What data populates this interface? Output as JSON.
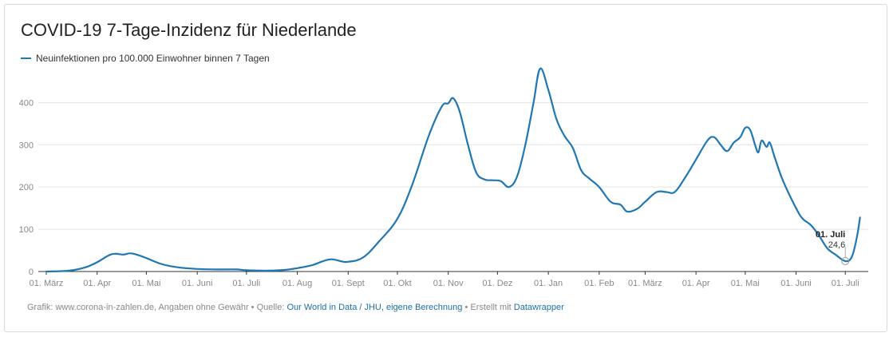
{
  "chart_data": {
    "type": "line",
    "title": "COVID-19 7-Tage-Inzidenz für Niederlande",
    "xlabel": "",
    "ylabel": "",
    "ylim": [
      0,
      480
    ],
    "grid": true,
    "legend_position": "top-left",
    "y_ticks": [
      "0",
      "100",
      "200",
      "300",
      "400"
    ],
    "x_ticks": [
      "01. März",
      "01. Apr",
      "01. Mai",
      "01. Juni",
      "01. Juli",
      "01. Aug",
      "01. Sept",
      "01. Okt",
      "01. Nov",
      "01. Dez",
      "01. Jan",
      "01. Feb",
      "01. März",
      "01. Apr",
      "01. Mai",
      "01. Juni",
      "01. Juli"
    ],
    "series": [
      {
        "name": "Neuinfektionen pro 100.000 Einwohner binnen 7 Tagen",
        "color": "#1f77b4",
        "points": [
          {
            "x": "2020-03-01",
            "y": 0
          },
          {
            "x": "2020-03-15",
            "y": 2
          },
          {
            "x": "2020-03-25",
            "y": 10
          },
          {
            "x": "2020-04-01",
            "y": 22
          },
          {
            "x": "2020-04-08",
            "y": 38
          },
          {
            "x": "2020-04-12",
            "y": 42
          },
          {
            "x": "2020-04-17",
            "y": 40
          },
          {
            "x": "2020-04-21",
            "y": 43
          },
          {
            "x": "2020-04-25",
            "y": 40
          },
          {
            "x": "2020-05-01",
            "y": 32
          },
          {
            "x": "2020-05-10",
            "y": 18
          },
          {
            "x": "2020-05-20",
            "y": 10
          },
          {
            "x": "2020-06-01",
            "y": 6
          },
          {
            "x": "2020-06-15",
            "y": 5
          },
          {
            "x": "2020-06-25",
            "y": 5
          },
          {
            "x": "2020-07-01",
            "y": 3
          },
          {
            "x": "2020-07-15",
            "y": 2
          },
          {
            "x": "2020-07-25",
            "y": 4
          },
          {
            "x": "2020-08-01",
            "y": 8
          },
          {
            "x": "2020-08-10",
            "y": 15
          },
          {
            "x": "2020-08-17",
            "y": 25
          },
          {
            "x": "2020-08-22",
            "y": 29
          },
          {
            "x": "2020-08-28",
            "y": 24
          },
          {
            "x": "2020-09-01",
            "y": 23
          },
          {
            "x": "2020-09-10",
            "y": 33
          },
          {
            "x": "2020-09-20",
            "y": 72
          },
          {
            "x": "2020-10-01",
            "y": 125
          },
          {
            "x": "2020-10-10",
            "y": 205
          },
          {
            "x": "2020-10-20",
            "y": 320
          },
          {
            "x": "2020-10-28",
            "y": 390
          },
          {
            "x": "2020-11-01",
            "y": 398
          },
          {
            "x": "2020-11-04",
            "y": 410
          },
          {
            "x": "2020-11-08",
            "y": 378
          },
          {
            "x": "2020-11-13",
            "y": 300
          },
          {
            "x": "2020-11-18",
            "y": 235
          },
          {
            "x": "2020-11-23",
            "y": 218
          },
          {
            "x": "2020-11-28",
            "y": 216
          },
          {
            "x": "2020-12-03",
            "y": 214
          },
          {
            "x": "2020-12-08",
            "y": 200
          },
          {
            "x": "2020-12-13",
            "y": 225
          },
          {
            "x": "2020-12-18",
            "y": 300
          },
          {
            "x": "2020-12-23",
            "y": 400
          },
          {
            "x": "2020-12-27",
            "y": 480
          },
          {
            "x": "2021-01-01",
            "y": 430
          },
          {
            "x": "2021-01-06",
            "y": 360
          },
          {
            "x": "2021-01-11",
            "y": 320
          },
          {
            "x": "2021-01-16",
            "y": 292
          },
          {
            "x": "2021-01-21",
            "y": 240
          },
          {
            "x": "2021-01-26",
            "y": 220
          },
          {
            "x": "2021-02-01",
            "y": 200
          },
          {
            "x": "2021-02-08",
            "y": 165
          },
          {
            "x": "2021-02-14",
            "y": 158
          },
          {
            "x": "2021-02-18",
            "y": 142
          },
          {
            "x": "2021-02-24",
            "y": 148
          },
          {
            "x": "2021-03-01",
            "y": 165
          },
          {
            "x": "2021-03-08",
            "y": 188
          },
          {
            "x": "2021-03-14",
            "y": 188
          },
          {
            "x": "2021-03-19",
            "y": 188
          },
          {
            "x": "2021-03-25",
            "y": 220
          },
          {
            "x": "2021-04-01",
            "y": 265
          },
          {
            "x": "2021-04-08",
            "y": 310
          },
          {
            "x": "2021-04-12",
            "y": 318
          },
          {
            "x": "2021-04-16",
            "y": 300
          },
          {
            "x": "2021-04-20",
            "y": 285
          },
          {
            "x": "2021-04-24",
            "y": 305
          },
          {
            "x": "2021-04-28",
            "y": 318
          },
          {
            "x": "2021-05-01",
            "y": 340
          },
          {
            "x": "2021-05-04",
            "y": 335
          },
          {
            "x": "2021-05-07",
            "y": 300
          },
          {
            "x": "2021-05-09",
            "y": 282
          },
          {
            "x": "2021-05-11",
            "y": 310
          },
          {
            "x": "2021-05-14",
            "y": 295
          },
          {
            "x": "2021-05-16",
            "y": 305
          },
          {
            "x": "2021-05-19",
            "y": 270
          },
          {
            "x": "2021-05-24",
            "y": 215
          },
          {
            "x": "2021-06-01",
            "y": 150
          },
          {
            "x": "2021-06-05",
            "y": 125
          },
          {
            "x": "2021-06-10",
            "y": 110
          },
          {
            "x": "2021-06-15",
            "y": 85
          },
          {
            "x": "2021-06-20",
            "y": 55
          },
          {
            "x": "2021-06-25",
            "y": 40
          },
          {
            "x": "2021-07-01",
            "y": 24.6
          },
          {
            "x": "2021-07-05",
            "y": 35
          },
          {
            "x": "2021-07-08",
            "y": 80
          },
          {
            "x": "2021-07-10",
            "y": 128
          }
        ]
      }
    ],
    "annotation": {
      "x": "2021-07-01",
      "y": 24.6,
      "label": "01. Juli",
      "value": "24,6"
    }
  },
  "footer": {
    "prefix": "Grafik: www.corona-in-zahlen.de, Angaben ohne Gewähr • Quelle: ",
    "source_link": "Our World in Data / JHU, eigene Berechnung",
    "middle": " • Erstellt mit ",
    "tool_link": "Datawrapper",
    "link_color": "#1d6fa5"
  }
}
